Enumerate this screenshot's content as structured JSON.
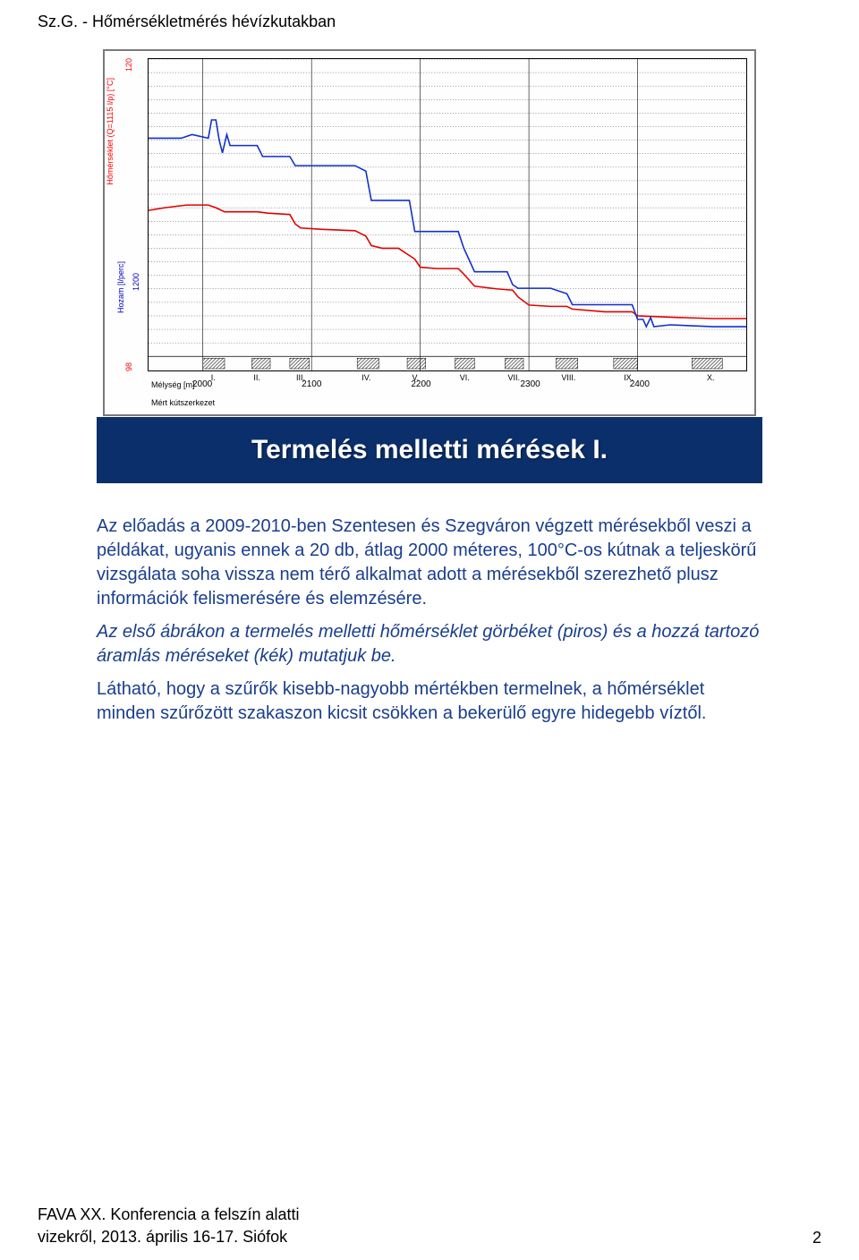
{
  "header": {
    "title_line": "Sz.G. - Hőmérsékletmérés hévízkutakban"
  },
  "footer": {
    "line1": "FAVA XX. Konferencia a felszín alatti",
    "line2": "vizekről, 2013. április 16-17. Siófok",
    "page_number": "2"
  },
  "title_bar": {
    "text": "Termelés melletti mérések I."
  },
  "body": {
    "p1": "Az előadás a 2009-2010-ben Szentesen és Szegváron végzett mérésekből veszi a példákat, ugyanis ennek a 20 db, átlag 2000 méteres, 100°C-os kútnak a teljeskörű vizsgálata soha vissza nem térő alkalmat adott a mérésekből szerezhető plusz információk felismerésére és elemzésére.",
    "p2": "Az első ábrákon a termelés melletti hőmérséklet görbéket (piros) és a hozzá tartozó áramlás méréseket (kék) mutatjuk be.",
    "p3": "Látható, hogy a szűrők kisebb-nagyobb mértékben termelnek, a hőmérséklet minden szűrőzött szakaszon kicsit csökken a bekerülő egyre hidegebb víztől."
  },
  "chart": {
    "type": "line",
    "background_color": "#ffffff",
    "border_color": "#7a7a7a",
    "grid_color": "#000000",
    "grid_dash": "1,2",
    "x_axis": {
      "title": "Mélység [m]",
      "ticks": [
        2000,
        2100,
        2200,
        2300,
        2400
      ],
      "min": 1950,
      "max": 2500,
      "roman_markers": [
        "I.",
        "II.",
        "III.",
        "IV.",
        "V.",
        "VI.",
        "VII.",
        "VIII.",
        "IX.",
        "X."
      ],
      "roman_positions": [
        2010,
        2050,
        2090,
        2150,
        2195,
        2240,
        2285,
        2335,
        2390,
        2465
      ],
      "kutszerkezet_label": "Mért kútszerkezet"
    },
    "y_left": {
      "title": "Hőmérséklet (Q=1115 l/p) [°C]",
      "min": 98,
      "max": 120,
      "top_tick": "120",
      "bottom_tick": "98"
    },
    "y_right_secondary": {
      "title": "Hozam [l/perc]",
      "tick_mid": "1200"
    },
    "temperature_series": {
      "color": "#e20000",
      "width": 1.6,
      "points": [
        [
          1950,
          108.8
        ],
        [
          1965,
          109.0
        ],
        [
          1985,
          109.2
        ],
        [
          2005,
          109.2
        ],
        [
          2012,
          109.0
        ],
        [
          2020,
          108.7
        ],
        [
          2035,
          108.7
        ],
        [
          2050,
          108.7
        ],
        [
          2060,
          108.6
        ],
        [
          2080,
          108.5
        ],
        [
          2085,
          107.8
        ],
        [
          2090,
          107.5
        ],
        [
          2110,
          107.4
        ],
        [
          2140,
          107.3
        ],
        [
          2150,
          106.9
        ],
        [
          2155,
          106.2
        ],
        [
          2165,
          106.0
        ],
        [
          2180,
          106.0
        ],
        [
          2195,
          105.2
        ],
        [
          2200,
          104.6
        ],
        [
          2215,
          104.5
        ],
        [
          2235,
          104.5
        ],
        [
          2240,
          104.1
        ],
        [
          2250,
          103.2
        ],
        [
          2270,
          103.0
        ],
        [
          2285,
          102.9
        ],
        [
          2290,
          102.4
        ],
        [
          2300,
          101.8
        ],
        [
          2320,
          101.7
        ],
        [
          2335,
          101.7
        ],
        [
          2340,
          101.5
        ],
        [
          2370,
          101.3
        ],
        [
          2395,
          101.3
        ],
        [
          2400,
          101.0
        ],
        [
          2430,
          100.9
        ],
        [
          2470,
          100.8
        ],
        [
          2500,
          100.8
        ]
      ]
    },
    "flow_series": {
      "color": "#1030d0",
      "width": 1.6,
      "y_min": 0,
      "y_max": 1300,
      "points": [
        [
          1950,
          1160
        ],
        [
          1980,
          1160
        ],
        [
          1990,
          1180
        ],
        [
          2005,
          1160
        ],
        [
          2008,
          1260
        ],
        [
          2012,
          1260
        ],
        [
          2015,
          1150
        ],
        [
          2018,
          1080
        ],
        [
          2022,
          1180
        ],
        [
          2025,
          1120
        ],
        [
          2030,
          1120
        ],
        [
          2050,
          1120
        ],
        [
          2055,
          1060
        ],
        [
          2060,
          1060
        ],
        [
          2080,
          1060
        ],
        [
          2085,
          1010
        ],
        [
          2090,
          1010
        ],
        [
          2140,
          1010
        ],
        [
          2150,
          980
        ],
        [
          2155,
          820
        ],
        [
          2165,
          820
        ],
        [
          2190,
          820
        ],
        [
          2195,
          650
        ],
        [
          2200,
          650
        ],
        [
          2235,
          650
        ],
        [
          2240,
          560
        ],
        [
          2250,
          430
        ],
        [
          2280,
          430
        ],
        [
          2285,
          360
        ],
        [
          2290,
          340
        ],
        [
          2320,
          340
        ],
        [
          2335,
          310
        ],
        [
          2340,
          250
        ],
        [
          2370,
          250
        ],
        [
          2395,
          250
        ],
        [
          2400,
          170
        ],
        [
          2405,
          170
        ],
        [
          2408,
          130
        ],
        [
          2412,
          180
        ],
        [
          2415,
          130
        ],
        [
          2430,
          140
        ],
        [
          2470,
          130
        ],
        [
          2490,
          130
        ],
        [
          2500,
          130
        ]
      ]
    },
    "hatched_sections": {
      "color": "#000000",
      "intervals": [
        [
          2000,
          2020
        ],
        [
          2045,
          2062
        ],
        [
          2080,
          2098
        ],
        [
          2142,
          2162
        ],
        [
          2188,
          2205
        ],
        [
          2232,
          2250
        ],
        [
          2278,
          2295
        ],
        [
          2325,
          2345
        ],
        [
          2378,
          2400
        ],
        [
          2450,
          2478
        ]
      ]
    }
  }
}
